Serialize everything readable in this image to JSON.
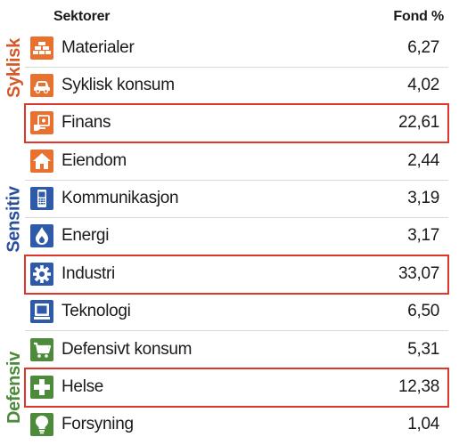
{
  "header": {
    "sectors_label": "Sektorer",
    "fund_label": "Fond  %"
  },
  "groups": [
    {
      "label": "Syklisk",
      "color": "#d4592a"
    },
    {
      "label": "Sensitiv",
      "color": "#2a4f9a"
    },
    {
      "label": "Defensiv",
      "color": "#4e8a3b"
    }
  ],
  "rows": [
    {
      "name": "Materialer",
      "value": "6,27",
      "icon": "bricks-icon",
      "group": "Syklisk",
      "highlighted": false
    },
    {
      "name": "Syklisk konsum",
      "value": "4,02",
      "icon": "car-icon",
      "group": "Syklisk",
      "highlighted": false
    },
    {
      "name": "Finans",
      "value": "22,61",
      "icon": "money-icon",
      "group": "Syklisk",
      "highlighted": true
    },
    {
      "name": "Eiendom",
      "value": "2,44",
      "icon": "house-icon",
      "group": "Syklisk",
      "highlighted": false
    },
    {
      "name": "Kommunikasjon",
      "value": "3,19",
      "icon": "phone-icon",
      "group": "Sensitiv",
      "highlighted": false
    },
    {
      "name": "Energi",
      "value": "3,17",
      "icon": "flame-icon",
      "group": "Sensitiv",
      "highlighted": false
    },
    {
      "name": "Industri",
      "value": "33,07",
      "icon": "gear-icon",
      "group": "Sensitiv",
      "highlighted": true
    },
    {
      "name": "Teknologi",
      "value": "6,50",
      "icon": "computer-icon",
      "group": "Sensitiv",
      "highlighted": false
    },
    {
      "name": "Defensivt konsum",
      "value": "5,31",
      "icon": "cart-icon",
      "group": "Defensiv",
      "highlighted": false
    },
    {
      "name": "Helse",
      "value": "12,38",
      "icon": "health-cross-icon",
      "group": "Defensiv",
      "highlighted": true
    },
    {
      "name": "Forsyning",
      "value": "1,04",
      "icon": "lightbulb-icon",
      "group": "Defensiv",
      "highlighted": false
    }
  ],
  "colors": {
    "syklisk": "#e8712f",
    "sensitiv": "#2f5aa8",
    "defensiv": "#4e8a3b",
    "highlight_border": "#e0372c"
  }
}
